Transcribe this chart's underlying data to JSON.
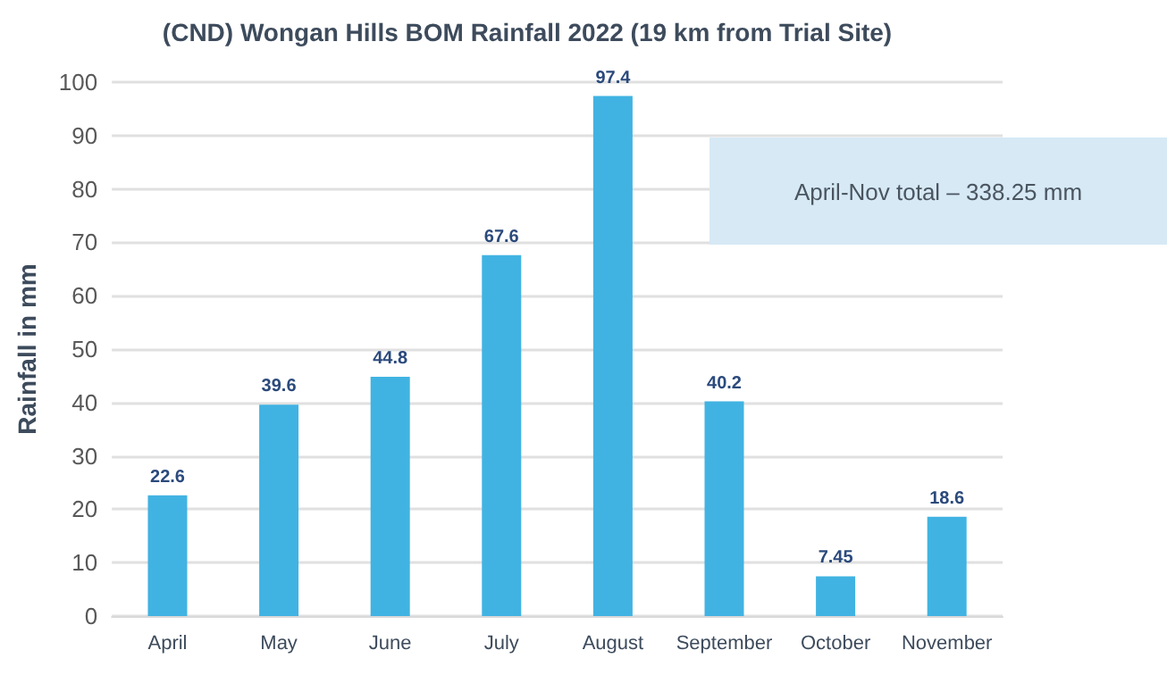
{
  "chart_data": {
    "type": "bar",
    "title": "(CND) Wongan Hills BOM Rainfall 2022 (19 km from Trial Site)",
    "ylabel": "Rainfall in mm",
    "categories": [
      "April",
      "May",
      "June",
      "July",
      "August",
      "September",
      "October",
      "November"
    ],
    "values": [
      22.6,
      39.6,
      44.8,
      67.6,
      97.4,
      40.2,
      7.45,
      18.6
    ],
    "data_labels": true,
    "color": "#41b3e2",
    "ylim": [
      0,
      100
    ],
    "yticks": [
      0,
      10,
      20,
      30,
      40,
      50,
      60,
      70,
      80,
      90,
      100
    ],
    "grid": "y",
    "annotations": [
      "April-Nov total – 338.25 mm"
    ]
  }
}
